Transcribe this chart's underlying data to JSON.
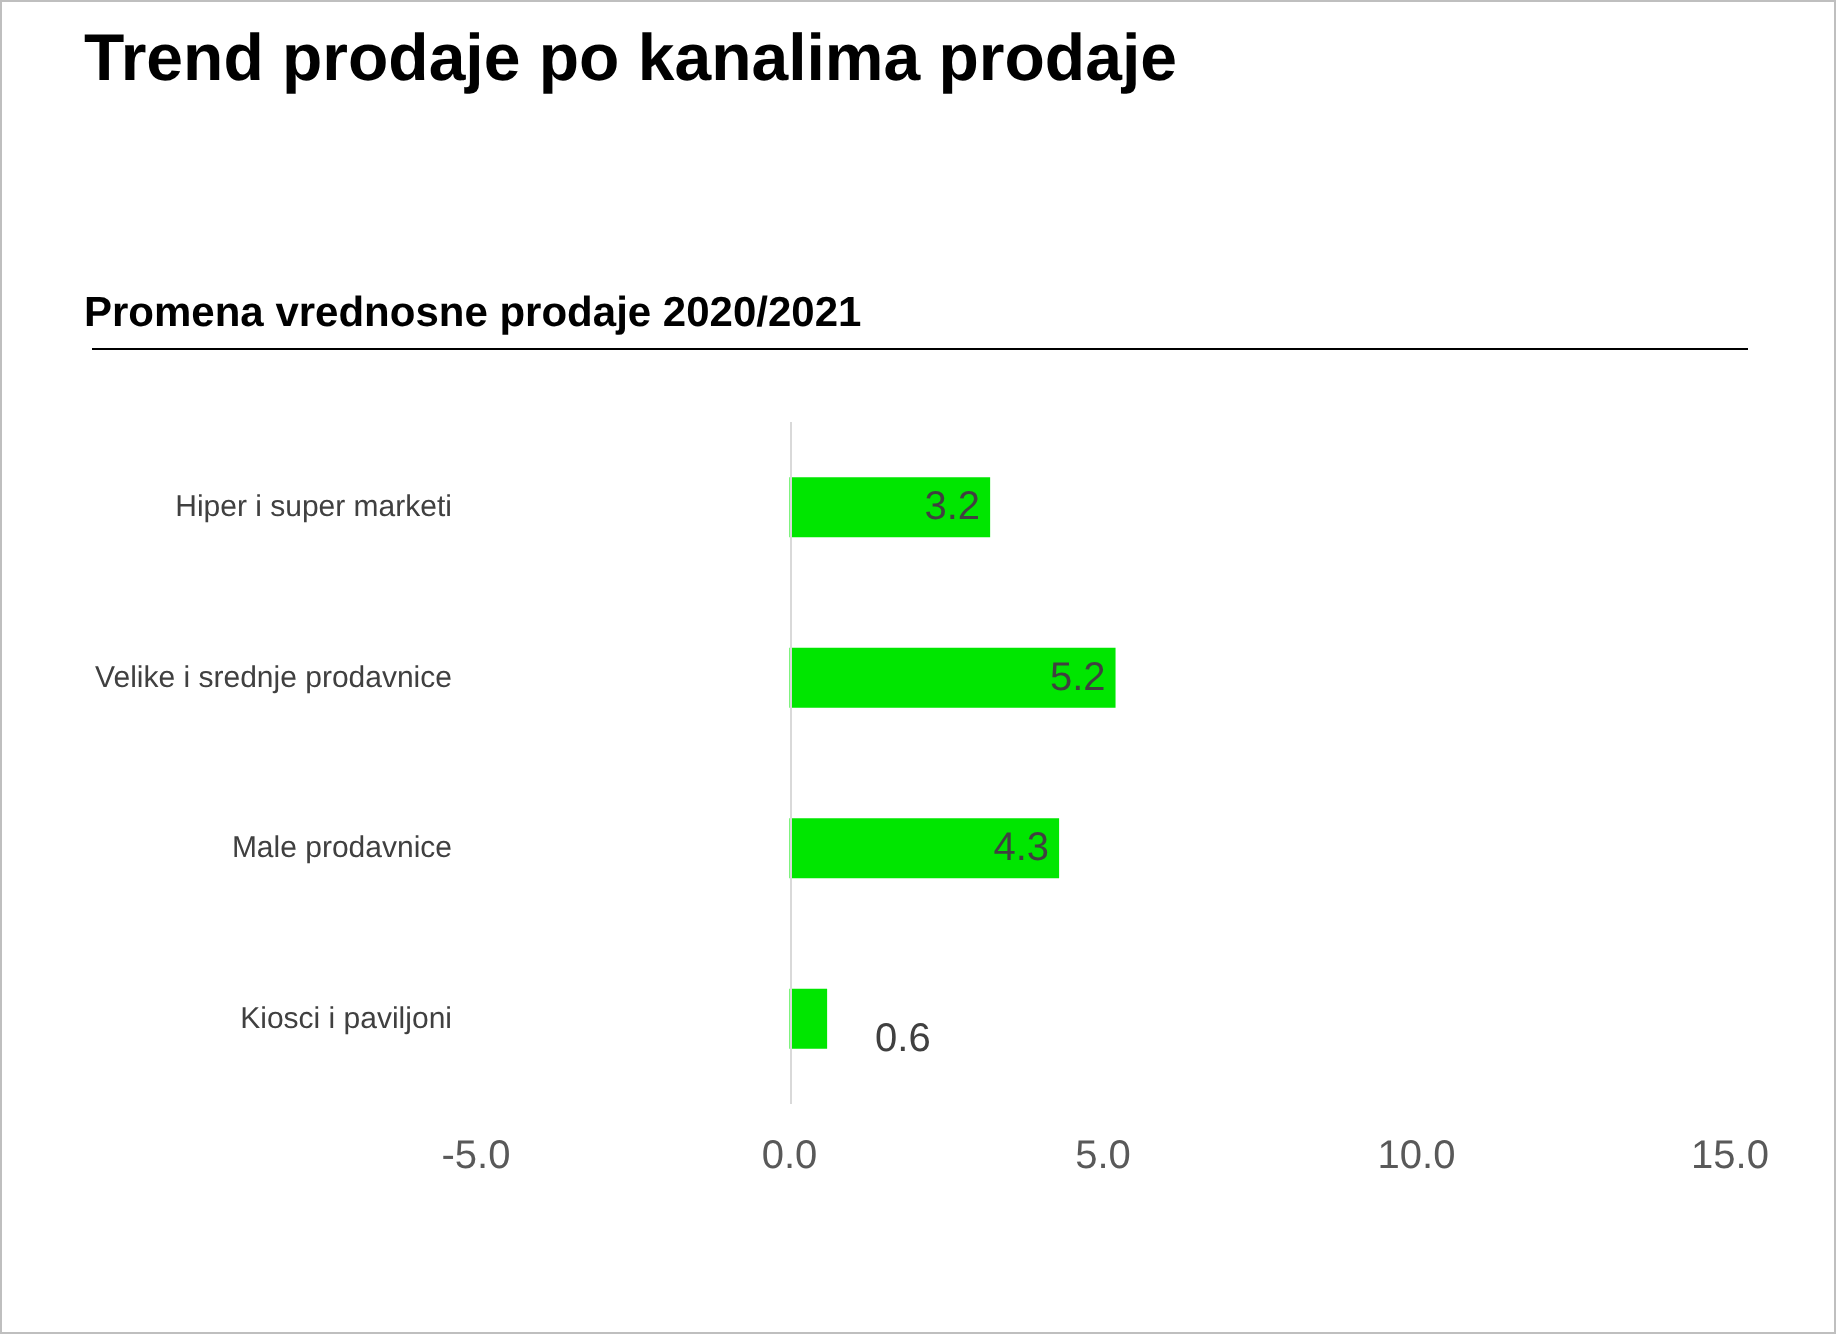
{
  "chart_data": {
    "type": "bar",
    "orientation": "horizontal",
    "title": "Trend prodaje po kanalima prodaje",
    "subtitle": "Promena vrednosne prodaje 2020/2021",
    "categories": [
      "Hiper i super marketi",
      "Velike i srednje prodavnice",
      "Male prodavnice",
      "Kiosci i paviljoni"
    ],
    "values": [
      3.2,
      5.2,
      4.3,
      0.6
    ],
    "color": "#00e600",
    "xlim": [
      -5,
      15
    ],
    "xticks": [
      {
        "value": -5,
        "label": "-5.0"
      },
      {
        "value": 0,
        "label": "0.0"
      },
      {
        "value": 5,
        "label": "5.0"
      },
      {
        "value": 10,
        "label": "10.0"
      },
      {
        "value": 15,
        "label": "15.0"
      }
    ],
    "ref_lines": [
      {
        "axis": "x",
        "value": 0,
        "color": "#d9d9d9"
      }
    ],
    "data_labels": true,
    "grid": false
  }
}
